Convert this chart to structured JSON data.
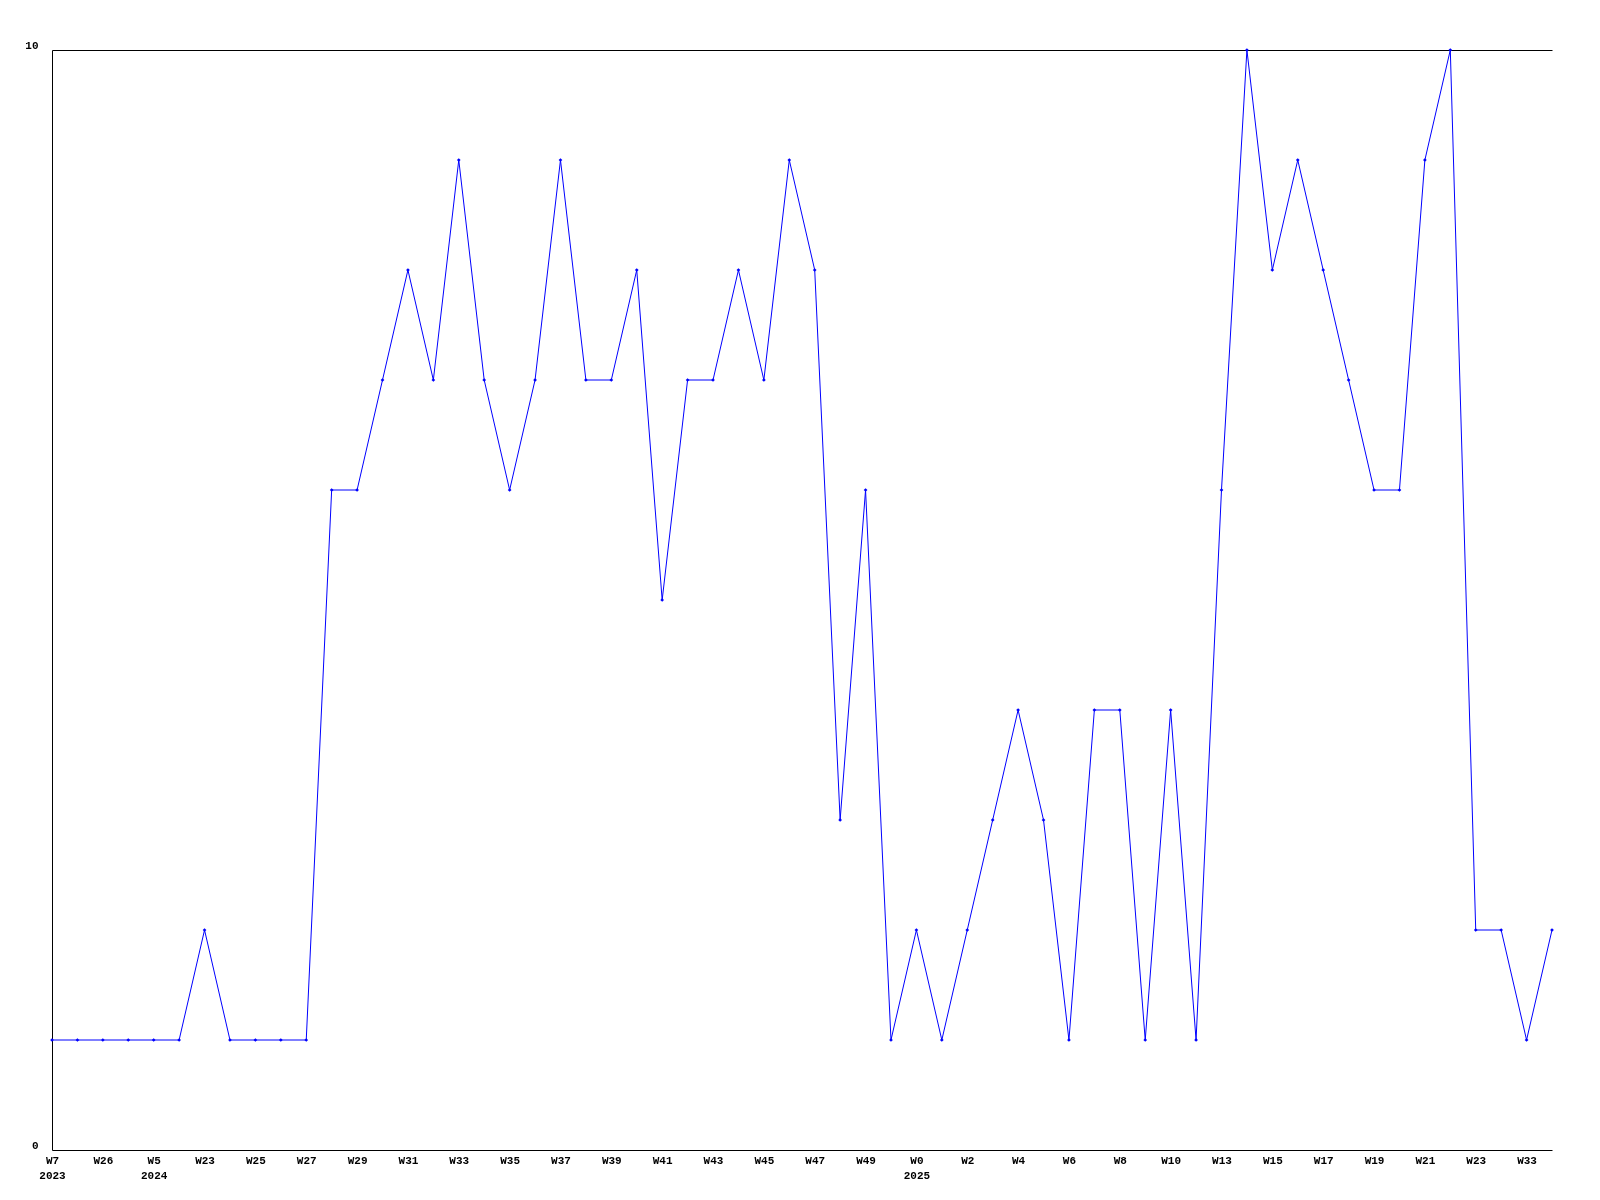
{
  "chart_data": {
    "type": "line",
    "categories": [
      "W7\n2023",
      null,
      "W26",
      null,
      "W5\n2024",
      null,
      "W23",
      null,
      "W25",
      null,
      "W27",
      null,
      "W29",
      null,
      "W31",
      null,
      "W33",
      null,
      "W35",
      null,
      "W37",
      null,
      "W39",
      null,
      "W41",
      null,
      "W43",
      null,
      "W45",
      null,
      "W47",
      null,
      "W49",
      null,
      "W0\n2025",
      null,
      "W2",
      null,
      "W4",
      null,
      "W6",
      null,
      "W8",
      null,
      "W10",
      null,
      "W13",
      null,
      "W15",
      null,
      "W17",
      null,
      "W19",
      null,
      "W21",
      null,
      "W23",
      null,
      "W33",
      null
    ],
    "series": [
      {
        "color": "#0000ff",
        "values": [
          1,
          1,
          1,
          1,
          1,
          1,
          2,
          1,
          1,
          1,
          1,
          6,
          6,
          7,
          8,
          7,
          9,
          7,
          6,
          7,
          9,
          7,
          7,
          8,
          5,
          7,
          7,
          8,
          7,
          9,
          8,
          3,
          6,
          1,
          2,
          1,
          2,
          3,
          4,
          3,
          1,
          4,
          4,
          1,
          4,
          1,
          6,
          10,
          8,
          9,
          8,
          7,
          6,
          6,
          9,
          10,
          2,
          2,
          1,
          2
        ]
      }
    ],
    "ylim": [
      0,
      10
    ],
    "yticks": [
      0,
      10
    ],
    "marker": "diamond",
    "line_style": "solid"
  }
}
